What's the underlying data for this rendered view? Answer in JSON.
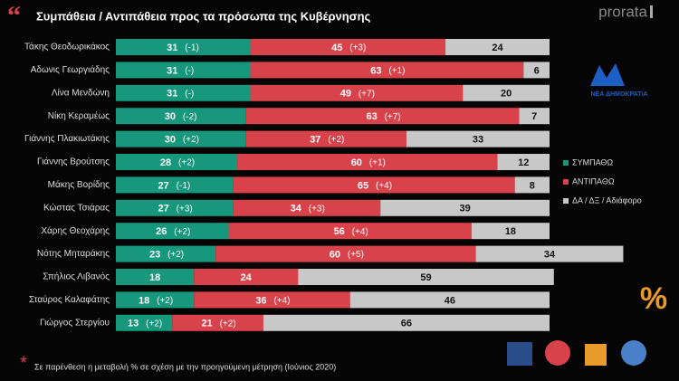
{
  "chart_data": {
    "type": "stacked-barh",
    "title": "Συμπάθεια / Αντιπάθεια προς τα πρόσωπα της Κυβέρνησης",
    "brand": "prorata",
    "logo_text": "ΝΕΑ ΔΗΜΟΚΡΑΤΙΑ",
    "footnote": "Σε παρένθεση η μεταβολή % σε σχέση με την προηγούμενη μέτρηση (Ιούνιος 2020)",
    "categories": [
      "Τάκης Θεοδωρικάκος",
      "Αδωνις Γεωργιάδης",
      "Λίνα Μενδώνη",
      "Νίκη Κεραμέως",
      "Γιάννης Πλακιωτάκης",
      "Γιάννης Βρούτσης",
      "Μάκης Βορίδης",
      "Κώστας Τσιάρας",
      "Χάρης Θεοχάρης",
      "Νότης Μηταράκης",
      "Σπήλιος Λιβανός",
      "Σταύρος Καλαφάτης",
      "Γιώργος Στεργίου"
    ],
    "series": [
      {
        "name": "ΣΥΜΠΑΘΩ",
        "color": "#17977b",
        "text_color": "#ffffff",
        "values": [
          31,
          31,
          31,
          30,
          30,
          28,
          27,
          27,
          26,
          23,
          18,
          18,
          13
        ],
        "changes": [
          "(-1)",
          "(-)",
          "(-)",
          "(-2)",
          "(+2)",
          "(+2)",
          "(-1)",
          "(+3)",
          "(+2)",
          "(+2)",
          null,
          "(+2)",
          "(+2)"
        ]
      },
      {
        "name": "ΑΝΤΙΠΑΘΩ",
        "color": "#d8434b",
        "text_color": "#ffffff",
        "values": [
          45,
          63,
          49,
          63,
          37,
          60,
          65,
          34,
          56,
          60,
          24,
          36,
          21
        ],
        "changes": [
          "(+3)",
          "(+1)",
          "(+7)",
          "(+7)",
          "(+2)",
          "(+1)",
          "(+4)",
          "(+3)",
          "(+4)",
          "(+5)",
          null,
          "(+4)",
          "(+2)"
        ]
      },
      {
        "name": "ΔΑ / ΔΞ / Αδιάφορο",
        "color": "#c8c8c8",
        "text_color": "#111111",
        "values": [
          24,
          6,
          20,
          7,
          33,
          12,
          8,
          39,
          18,
          34,
          59,
          46,
          66
        ]
      }
    ]
  }
}
